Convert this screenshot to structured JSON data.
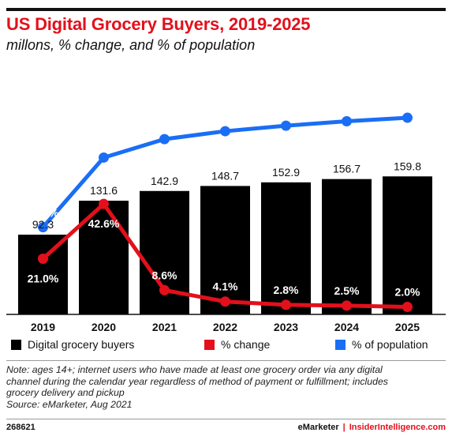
{
  "header": {
    "title": "US Digital Grocery Buyers, 2019-2025",
    "subtitle": "millons, % change, and % of population"
  },
  "colors": {
    "bars": "#000000",
    "change_line": "#e3101b",
    "population_line": "#1a6ef5",
    "title": "#e3101b"
  },
  "chart_data": {
    "type": "bar",
    "categories": [
      "2019",
      "2020",
      "2021",
      "2022",
      "2023",
      "2024",
      "2025"
    ],
    "series": [
      {
        "name": "Digital grocery buyers",
        "type": "bar",
        "values": [
          92.3,
          131.6,
          142.9,
          148.7,
          152.9,
          156.7,
          159.8
        ],
        "labels": [
          "92.3",
          "131.6",
          "142.9",
          "148.7",
          "152.9",
          "156.7",
          "159.8"
        ],
        "color": "#000000"
      },
      {
        "name": "% change",
        "type": "line",
        "values": [
          21.0,
          42.6,
          8.6,
          4.1,
          2.8,
          2.5,
          2.0
        ],
        "labels": [
          "21.0%",
          "42.6%",
          "8.6%",
          "4.1%",
          "2.8%",
          "2.5%",
          "2.0%"
        ],
        "color": "#e3101b"
      },
      {
        "name": "% of population",
        "type": "line",
        "values": [
          33.8,
          47.8,
          51.5,
          53.1,
          54.2,
          55.1,
          55.8
        ],
        "labels": [
          "33.8%",
          "47.8%",
          "51.5%",
          "53.1%",
          "54.2%",
          "55.1%",
          "55.8%"
        ],
        "color": "#1a6ef5"
      }
    ],
    "legend": "bottom"
  },
  "legend": {
    "bars": "Digital grocery buyers",
    "change": "% change",
    "population": "% of population"
  },
  "note": {
    "line1": "Note: ages 14+; internet users who have made at least one grocery order via any digital",
    "line2": "channel during the calendar year regardless of method of payment or fulfillment; includes",
    "line3": "grocery delivery and pickup",
    "source": "Source: eMarketer, Aug 2021"
  },
  "footer": {
    "id": "268621",
    "brand1": "eMarketer",
    "brand2": "InsiderIntelligence.com"
  }
}
